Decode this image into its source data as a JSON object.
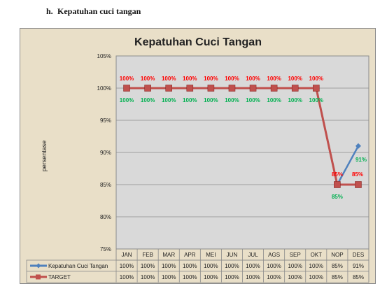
{
  "page": {
    "section_number": "h.",
    "section_title": "Kepatuhan cuci tangan"
  },
  "chart_data": {
    "type": "line",
    "title": "Kepatuhan Cuci Tangan",
    "ylabel": "persentase",
    "xlabel": "",
    "ylim": [
      75,
      105
    ],
    "yticks": [
      75,
      80,
      85,
      90,
      95,
      100,
      105
    ],
    "ytick_labels": [
      "75%",
      "80%",
      "85%",
      "90%",
      "95%",
      "100%",
      "105%"
    ],
    "categories": [
      "JAN",
      "FEB",
      "MAR",
      "APR",
      "MEI",
      "JUN",
      "JUL",
      "AGS",
      "SEP",
      "OKT",
      "NOP",
      "DES"
    ],
    "grid": true,
    "legend": "data-table-bottom",
    "series": [
      {
        "name": "Kepatuhan Cuci Tangan",
        "color": "#4f81bd",
        "marker": "diamond",
        "values": [
          100,
          100,
          100,
          100,
          100,
          100,
          100,
          100,
          100,
          100,
          85,
          91
        ],
        "labels": [
          "100%",
          "100%",
          "100%",
          "100%",
          "100%",
          "100%",
          "100%",
          "100%",
          "100%",
          "100%",
          "85%",
          "91%"
        ],
        "label_color": "#00b050"
      },
      {
        "name": "TARGET",
        "color": "#c0504d",
        "marker": "square",
        "values": [
          100,
          100,
          100,
          100,
          100,
          100,
          100,
          100,
          100,
          100,
          85,
          85
        ],
        "labels": [
          "100%",
          "100%",
          "100%",
          "100%",
          "100%",
          "100%",
          "100%",
          "100%",
          "100%",
          "100%",
          "85%",
          "85%"
        ],
        "label_color": "#ff0000"
      }
    ],
    "table": {
      "rows": [
        {
          "series_name": "Kepatuhan Cuci Tangan",
          "cells": [
            "100%",
            "100%",
            "100%",
            "100%",
            "100%",
            "100%",
            "100%",
            "100%",
            "100%",
            "100%",
            "85%",
            "91%"
          ]
        },
        {
          "series_name": "TARGET",
          "cells": [
            "100%",
            "100%",
            "100%",
            "100%",
            "100%",
            "100%",
            "100%",
            "100%",
            "100%",
            "100%",
            "85%",
            "85%"
          ]
        }
      ]
    }
  }
}
